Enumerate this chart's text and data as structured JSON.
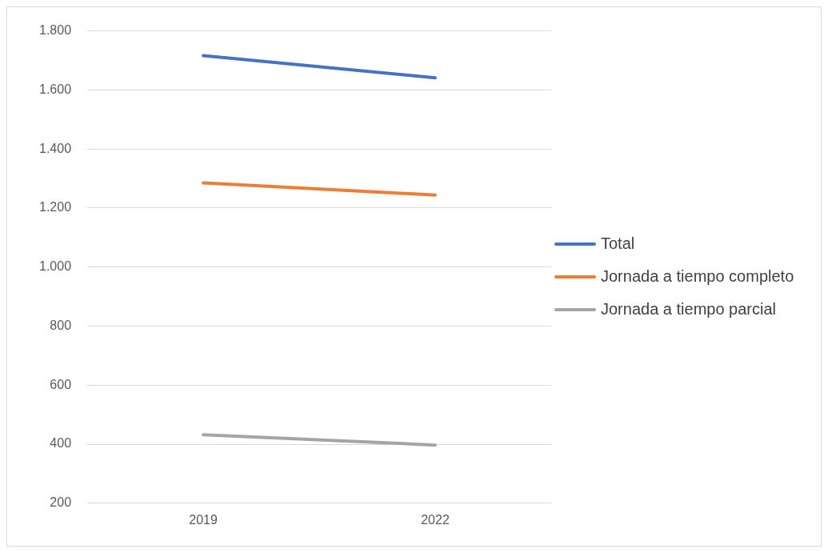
{
  "chart_data": {
    "type": "line",
    "categories": [
      "2019",
      "2022"
    ],
    "series": [
      {
        "name": "Total",
        "color": "#4472c4",
        "values": [
          1716,
          1641
        ]
      },
      {
        "name": "Jornada a tiempo completo",
        "color": "#ed7d31",
        "values": [
          1285,
          1244
        ]
      },
      {
        "name": "Jornada a tiempo parcial",
        "color": "#a5a5a5",
        "values": [
          432,
          397
        ]
      }
    ],
    "ylim": [
      200,
      1800
    ],
    "yticks": [
      {
        "value": 200,
        "label": "200"
      },
      {
        "value": 400,
        "label": "400"
      },
      {
        "value": 600,
        "label": "600"
      },
      {
        "value": 800,
        "label": "800"
      },
      {
        "value": 1000,
        "label": "1.000"
      },
      {
        "value": 1200,
        "label": "1.200"
      },
      {
        "value": 1400,
        "label": "1.400"
      },
      {
        "value": 1600,
        "label": "1.600"
      },
      {
        "value": 1800,
        "label": "1.800"
      }
    ],
    "grid": "y",
    "legend": "right",
    "marker": "none",
    "line_style": "solid"
  }
}
